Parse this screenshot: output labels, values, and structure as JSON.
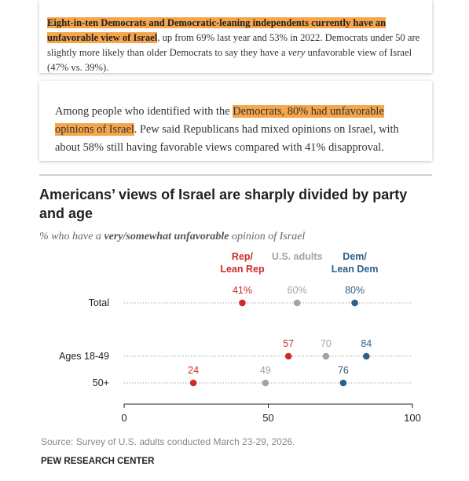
{
  "article": {
    "p1_highlight": "Eight-in-ten Democrats and Democratic-leaning independents currently have an unfavorable view of Israel",
    "p1_rest_a": ", up from 69% last year and 53% in 2022. Democrats under 50 are slightly more likely than older Democrats to say they have a ",
    "p1_italic": "very",
    "p1_rest_b": " unfavorable view of Israel (47% vs. 39%).",
    "p2_before": "Among people who identified with the ",
    "p2_highlight": "Democrats, 80% had unfavorable opinions of Israel",
    "p2_after": ". Pew said Republicans had mixed opinions on Israel, with about 58% still having favorable views compared with 41% disapproval."
  },
  "chart_data": {
    "type": "scatter",
    "title_line1": "Americans’ views of Israel are sharply divided by party",
    "title_line2": "and age",
    "subtitle_before": "% who have a ",
    "subtitle_emph": "very/somewhat unfavorable",
    "subtitle_after": " opinion of Israel",
    "categories": [
      "Total",
      "Ages 18-49",
      "50+"
    ],
    "xlim": [
      0,
      100
    ],
    "xticks": [
      0,
      50,
      100
    ],
    "xtick_labels": [
      "0",
      "50",
      "100"
    ],
    "series": [
      {
        "name_line1": "Rep/",
        "name_line2": "Lean Rep",
        "color": "#cb2b2b",
        "values": [
          41,
          57,
          24
        ],
        "labels": [
          "41%",
          "57",
          "24"
        ]
      },
      {
        "name_line1": "U.S. adults",
        "name_line2": "",
        "color": "#a3a3a3",
        "values": [
          60,
          70,
          49
        ],
        "labels": [
          "60%",
          "70",
          "49"
        ]
      },
      {
        "name_line1": "Dem/",
        "name_line2": "Lean Dem",
        "color": "#2f6088",
        "values": [
          80,
          84,
          76
        ],
        "labels": [
          "80%",
          "84",
          "76"
        ]
      }
    ],
    "source": "Source: Survey of U.S. adults conducted March 23-29, 2026.",
    "org": "PEW RESEARCH CENTER"
  }
}
